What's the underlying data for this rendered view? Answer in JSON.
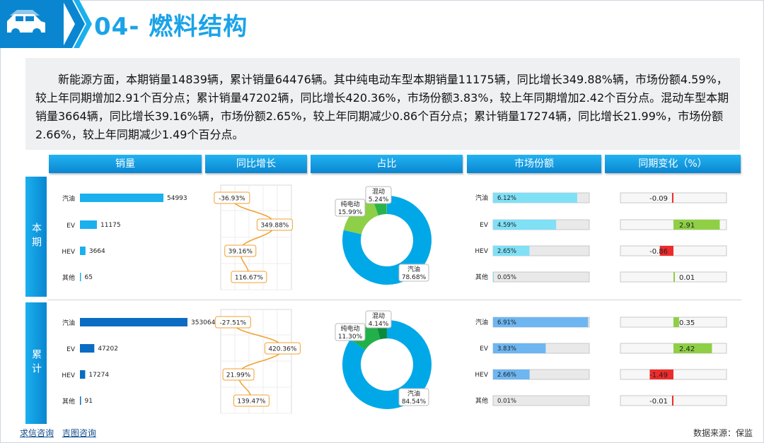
{
  "header": {
    "title": "04- 燃料结构"
  },
  "summary": "新能源方面，本期销量14839辆，累计销量64476辆。其中纯电动车型本期销量11175辆，同比增长349.88%辆，市场份额4.59%，较上年同期增加2.91个百分点；累计销量47202辆，同比增长420.36%，市场份额3.83%，较上年同期增加2.42个百分点。混动车型本期销量3664辆，同比增长39.16%辆，市场份额2.65%，较上年同期减少0.86个百分点；累计销量17274辆，同比增长21.99%，市场份额2.66%，较上年同期减少1.49个百分点。",
  "column_headers": [
    "销量",
    "同比增长",
    "占比",
    "市场份额",
    "同期变化（%）"
  ],
  "row_labels": {
    "current": "本期",
    "cumulative": "累计"
  },
  "categories": [
    "汽油",
    "EV",
    "HEV",
    "其他"
  ],
  "colors": {
    "accent": "#0a86d1",
    "current_bar": "#1ab0ee",
    "cumulative_bar": "#0a6cc2",
    "growth_line": "#f0a030",
    "share_light": "#7fe0f6",
    "share_dark": "#6db6f2",
    "pos": "#8fcf45",
    "neg": "#ee2b2b"
  },
  "chart_data": [
    {
      "type": "bar",
      "panel": "本期",
      "metric": "销量",
      "categories": [
        "汽油",
        "EV",
        "HEV",
        "其他"
      ],
      "values": [
        54993,
        11175,
        3664,
        65
      ],
      "value_labels": [
        "54993",
        "11175",
        "3664",
        "65"
      ]
    },
    {
      "type": "line",
      "panel": "本期",
      "metric": "同比增长",
      "categories": [
        "汽油",
        "EV",
        "HEV",
        "其他"
      ],
      "values": [
        -36.93,
        349.88,
        39.16,
        116.67
      ],
      "labels": [
        "-36.93%",
        "349.88%",
        "39.16%",
        "116.67%"
      ]
    },
    {
      "type": "pie",
      "panel": "本期",
      "metric": "占比",
      "slices": [
        {
          "name": "汽油",
          "value": 78.68,
          "label": "78.68%"
        },
        {
          "name": "纯电动",
          "value": 15.99,
          "label": "15.99%"
        },
        {
          "name": "混动",
          "value": 5.24,
          "label": "5.24%"
        }
      ]
    },
    {
      "type": "bar",
      "panel": "本期",
      "metric": "市场份额",
      "categories": [
        "汽油",
        "EV",
        "HEV",
        "其他"
      ],
      "values": [
        6.12,
        4.59,
        2.65,
        0.05
      ],
      "labels": [
        "6.12%",
        "4.59%",
        "2.65%",
        "0.05%"
      ]
    },
    {
      "type": "bar",
      "panel": "本期",
      "metric": "同期变化（%）",
      "categories": [
        "汽油",
        "EV",
        "HEV",
        "其他"
      ],
      "values": [
        -0.09,
        2.91,
        -0.86,
        0.01
      ],
      "labels": [
        "-0.09",
        "2.91",
        "-0.86",
        "0.01"
      ]
    },
    {
      "type": "bar",
      "panel": "累计",
      "metric": "销量",
      "categories": [
        "汽油",
        "EV",
        "HEV",
        "其他"
      ],
      "values": [
        353064,
        47202,
        17274,
        91
      ],
      "value_labels": [
        "353064",
        "47202",
        "17274",
        "91"
      ]
    },
    {
      "type": "line",
      "panel": "累计",
      "metric": "同比增长",
      "categories": [
        "汽油",
        "EV",
        "HEV",
        "其他"
      ],
      "values": [
        -27.51,
        420.36,
        21.99,
        139.47
      ],
      "labels": [
        "-27.51%",
        "420.36%",
        "21.99%",
        "139.47%"
      ]
    },
    {
      "type": "pie",
      "panel": "累计",
      "metric": "占比",
      "slices": [
        {
          "name": "汽油",
          "value": 84.54,
          "label": "84.54%"
        },
        {
          "name": "纯电动",
          "value": 11.3,
          "label": "11.30%"
        },
        {
          "name": "混动",
          "value": 4.14,
          "label": "4.14%"
        }
      ]
    },
    {
      "type": "bar",
      "panel": "累计",
      "metric": "市场份额",
      "categories": [
        "汽油",
        "EV",
        "HEV",
        "其他"
      ],
      "values": [
        6.91,
        3.83,
        2.66,
        0.01
      ],
      "labels": [
        "6.91%",
        "3.83%",
        "2.66%",
        "0.01%"
      ]
    },
    {
      "type": "bar",
      "panel": "累计",
      "metric": "同期变化（%）",
      "categories": [
        "汽油",
        "EV",
        "HEV",
        "其他"
      ],
      "values": [
        0.35,
        2.42,
        -1.49,
        -0.01
      ],
      "labels": [
        "0.35",
        "2.42",
        "-1.49",
        "-0.01"
      ]
    }
  ],
  "footer": {
    "links": [
      "求信咨询",
      "吉图咨询"
    ],
    "source": "数据来源：保监"
  }
}
